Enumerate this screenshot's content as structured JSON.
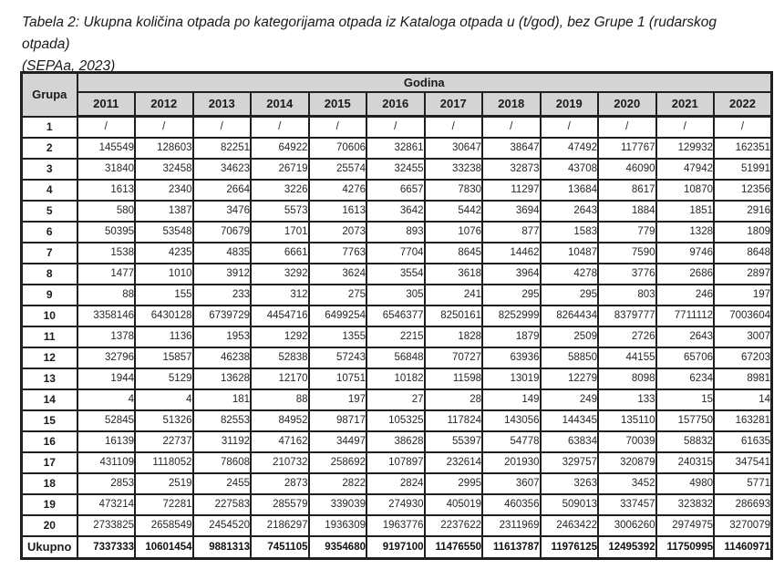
{
  "caption": {
    "line1": "Tabela 2: Ukupna količina otpada po kategorijama otpada iz Kataloga otpada u (t/god), bez Grupe 1 (rudarskog otpada)",
    "line2": "(SEPAa, 2023)"
  },
  "colors": {
    "border": "#1f1f1f",
    "header_bg": "#d4d4d4",
    "text": "#1c1c1c"
  },
  "table": {
    "corner_header": "Grupa",
    "year_group_header": "Godina",
    "years": [
      "2011",
      "2012",
      "2013",
      "2014",
      "2015",
      "2016",
      "2017",
      "2018",
      "2019",
      "2020",
      "2021",
      "2022"
    ],
    "rows": [
      {
        "group": "1",
        "values": [
          "/",
          "/",
          "/",
          "/",
          "/",
          "/",
          "/",
          "/",
          "/",
          "/",
          "/",
          "/"
        ]
      },
      {
        "group": "2",
        "values": [
          145549,
          128603,
          82251,
          64922,
          70606,
          32861,
          30647,
          38647,
          47492,
          117767,
          129932,
          162351
        ]
      },
      {
        "group": "3",
        "values": [
          31840,
          32458,
          34623,
          26719,
          25574,
          32455,
          33238,
          32873,
          43708,
          46090,
          47942,
          51991
        ]
      },
      {
        "group": "4",
        "values": [
          1613,
          2340,
          2664,
          3226,
          4276,
          6657,
          7830,
          11297,
          13684,
          8617,
          10870,
          12356
        ]
      },
      {
        "group": "5",
        "values": [
          580,
          1387,
          3476,
          5573,
          1613,
          3642,
          5442,
          3694,
          2643,
          1884,
          1851,
          2916
        ]
      },
      {
        "group": "6",
        "values": [
          50395,
          53548,
          70679,
          1701,
          2073,
          893,
          1076,
          877,
          1583,
          779,
          1328,
          1809
        ]
      },
      {
        "group": "7",
        "values": [
          1538,
          4235,
          4835,
          6661,
          7763,
          7704,
          8645,
          14462,
          10487,
          7590,
          9746,
          8648
        ]
      },
      {
        "group": "8",
        "values": [
          1477,
          1010,
          3912,
          3292,
          3624,
          3554,
          3618,
          3964,
          4278,
          3776,
          2686,
          2897
        ]
      },
      {
        "group": "9",
        "values": [
          88,
          155,
          233,
          312,
          275,
          305,
          241,
          295,
          295,
          803,
          246,
          197
        ]
      },
      {
        "group": "10",
        "values": [
          3358146,
          6430128,
          6739729,
          4454716,
          6499254,
          6546377,
          8250161,
          8252999,
          8264434,
          8379777,
          7711112,
          7003604
        ]
      },
      {
        "group": "11",
        "values": [
          1378,
          1136,
          1953,
          1292,
          1355,
          2215,
          1828,
          1879,
          2509,
          2726,
          2643,
          3007
        ]
      },
      {
        "group": "12",
        "values": [
          32796,
          15857,
          46238,
          52838,
          57243,
          56848,
          70727,
          63936,
          58850,
          44155,
          65706,
          67203
        ]
      },
      {
        "group": "13",
        "values": [
          1944,
          5129,
          13628,
          12170,
          10751,
          10182,
          11598,
          13019,
          12279,
          8098,
          6234,
          8981
        ]
      },
      {
        "group": "14",
        "values": [
          4,
          4,
          181,
          88,
          197,
          27,
          28,
          149,
          249,
          133,
          15,
          14
        ]
      },
      {
        "group": "15",
        "values": [
          52845,
          51326,
          82553,
          84952,
          98717,
          105325,
          117824,
          143056,
          144345,
          135110,
          157750,
          163281
        ]
      },
      {
        "group": "16",
        "values": [
          16139,
          22737,
          31192,
          47162,
          34497,
          38628,
          55397,
          54778,
          63834,
          70039,
          58832,
          61635
        ]
      },
      {
        "group": "17",
        "values": [
          431109,
          1118052,
          78608,
          210732,
          258692,
          107897,
          232614,
          201930,
          329757,
          320879,
          240315,
          347541
        ]
      },
      {
        "group": "18",
        "values": [
          2853,
          2519,
          2455,
          2873,
          2822,
          2824,
          2995,
          3607,
          3263,
          3452,
          4980,
          5771
        ]
      },
      {
        "group": "19",
        "values": [
          473214,
          72281,
          227583,
          285579,
          339039,
          274930,
          405019,
          460356,
          509013,
          337457,
          323832,
          286693
        ]
      },
      {
        "group": "20",
        "values": [
          2733825,
          2658549,
          2454520,
          2186297,
          1936309,
          1963776,
          2237622,
          2311969,
          2463422,
          3006260,
          2974975,
          3270079
        ]
      }
    ],
    "total": {
      "label": "Ukupno",
      "values": [
        7337333,
        10601454,
        9881313,
        7451105,
        9354680,
        9197100,
        11476550,
        11613787,
        11976125,
        12495392,
        11750995,
        11460971
      ]
    }
  }
}
